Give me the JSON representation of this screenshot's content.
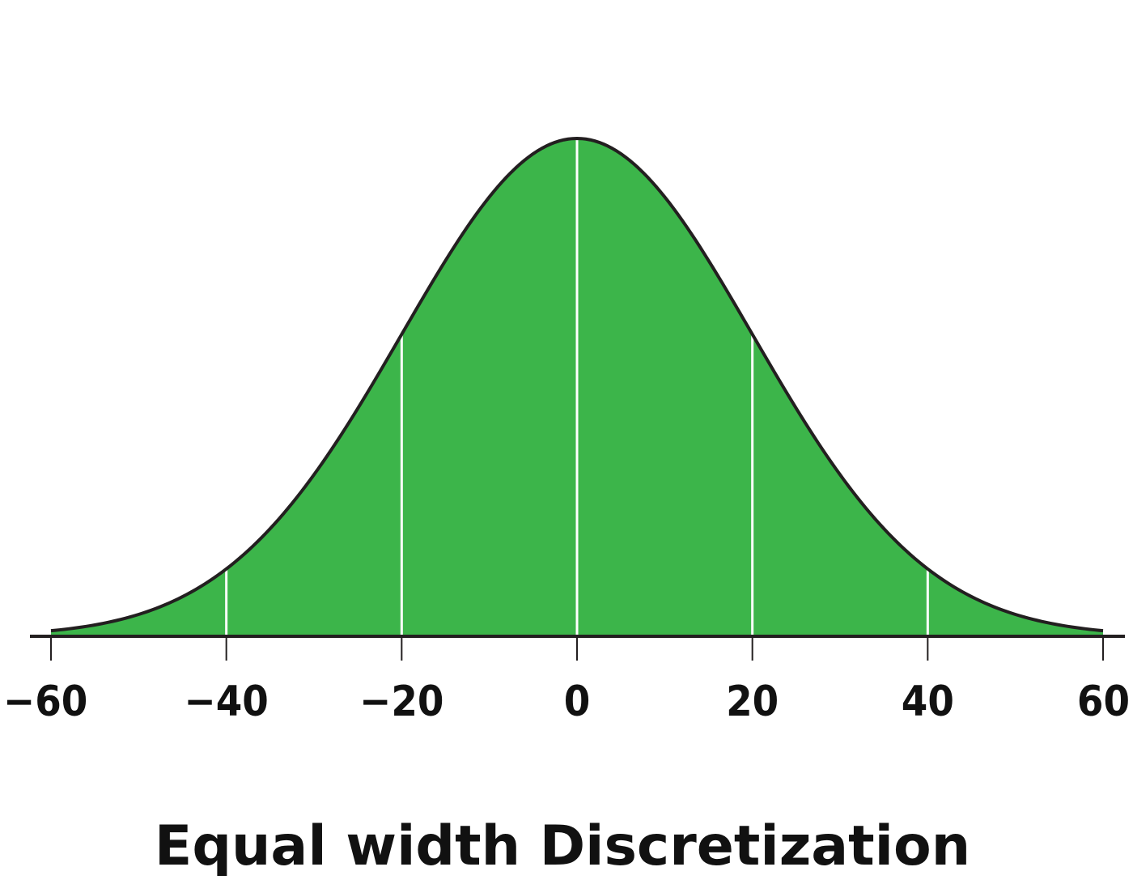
{
  "chart_data": {
    "type": "area",
    "title": "Equal width Discretization",
    "xlabel": "",
    "ylabel": "",
    "xlim": [
      -60,
      60
    ],
    "distribution": {
      "kind": "normal",
      "mean": 0,
      "sd": 20
    },
    "bin_edges": [
      -40,
      -20,
      0,
      20,
      40
    ],
    "x_ticks": [
      -60,
      -40,
      -20,
      0,
      20,
      40,
      60
    ],
    "tick_labels": [
      "−60",
      "−40",
      "−20",
      "0",
      "20",
      "40",
      "60"
    ],
    "grid": false,
    "legend": "none",
    "colors": {
      "fill": "#3cb54a",
      "outline": "#231f20",
      "bin_lines": "#ffffff",
      "axis": "#231f20"
    }
  }
}
